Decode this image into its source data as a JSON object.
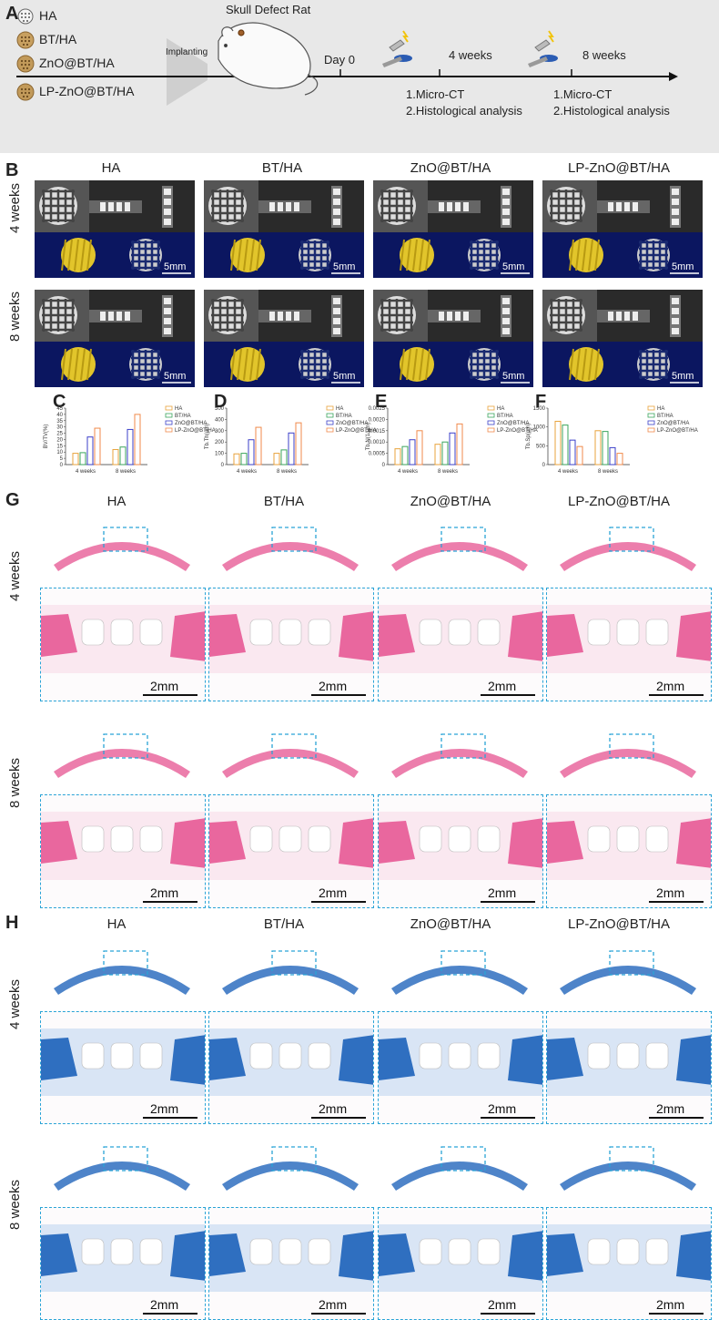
{
  "panels": {
    "A": "A",
    "B": "B",
    "C": "C",
    "D": "D",
    "E": "E",
    "F": "F",
    "G": "G",
    "H": "H"
  },
  "timeline": {
    "title": "Skull Defect Rat",
    "implanting": "Implanting",
    "day0": "Day 0",
    "w4": "4 weeks",
    "w8": "8 weeks",
    "step1": "1.Micro-CT",
    "step2": "2.Histological analysis",
    "groups": [
      "HA",
      "BT/HA",
      "ZnO@BT/HA",
      "LP-ZnO@BT/HA"
    ]
  },
  "groups": [
    "HA",
    "BT/HA",
    "ZnO@BT/HA",
    "LP-ZnO@BT/HA"
  ],
  "rows": {
    "w4": "4 weeks",
    "w8": "8 weeks"
  },
  "scale": {
    "ct": "5mm",
    "hist": "2mm"
  },
  "colors": {
    "HA": "#e8a33c",
    "BT/HA": "#3ba55d",
    "ZnO@BT/HA": "#3b3fc9",
    "LP-ZnO@BT/HA": "#f08a4b"
  },
  "chart_data": [
    {
      "type": "bar",
      "ylabel": "BV/TV(%)",
      "ylim": [
        0,
        45
      ],
      "yticks": [
        0,
        5,
        10,
        15,
        20,
        25,
        30,
        35,
        40,
        45
      ],
      "categories": [
        "4 weeks",
        "8 weeks"
      ],
      "series": [
        {
          "name": "HA",
          "values": [
            9,
            12
          ]
        },
        {
          "name": "BT/HA",
          "values": [
            9.5,
            14
          ]
        },
        {
          "name": "ZnO@BT/HA",
          "values": [
            22,
            28
          ]
        },
        {
          "name": "LP-ZnO@BT/HA",
          "values": [
            29,
            40
          ]
        }
      ],
      "legend": "top-right"
    },
    {
      "type": "bar",
      "ylabel": "Tb.Th(μm)",
      "ylim": [
        0,
        500
      ],
      "yticks": [
        0,
        100,
        200,
        300,
        400,
        500
      ],
      "categories": [
        "4 weeks",
        "8 weeks"
      ],
      "series": [
        {
          "name": "HA",
          "values": [
            95,
            100
          ]
        },
        {
          "name": "BT/HA",
          "values": [
            100,
            130
          ]
        },
        {
          "name": "ZnO@BT/HA",
          "values": [
            220,
            280
          ]
        },
        {
          "name": "LP-ZnO@BT/HA",
          "values": [
            330,
            370
          ]
        }
      ],
      "legend": "top-right"
    },
    {
      "type": "bar",
      "ylabel": "Tb.N(1/μm)",
      "ylim": [
        0,
        0.0025
      ],
      "yticks": [
        "0",
        "0.0005",
        "0.0010",
        "0.0015",
        "0.0020",
        "0.0025"
      ],
      "categories": [
        "4 weeks",
        "8 weeks"
      ],
      "series": [
        {
          "name": "HA",
          "values": [
            0.0007,
            0.0009
          ]
        },
        {
          "name": "BT/HA",
          "values": [
            0.0008,
            0.001
          ]
        },
        {
          "name": "ZnO@BT/HA",
          "values": [
            0.0011,
            0.0014
          ]
        },
        {
          "name": "LP-ZnO@BT/HA",
          "values": [
            0.0015,
            0.0018
          ]
        }
      ],
      "legend": "top-right"
    },
    {
      "type": "bar",
      "ylabel": "Tb.Sp(μm)",
      "ylim": [
        0,
        1500
      ],
      "yticks": [
        0,
        500,
        1000,
        1500
      ],
      "categories": [
        "4 weeks",
        "8 weeks"
      ],
      "series": [
        {
          "name": "HA",
          "values": [
            1150,
            900
          ]
        },
        {
          "name": "BT/HA",
          "values": [
            1050,
            880
          ]
        },
        {
          "name": "ZnO@BT/HA",
          "values": [
            650,
            450
          ]
        },
        {
          "name": "LP-ZnO@BT/HA",
          "values": [
            480,
            300
          ]
        }
      ],
      "legend": "top-right"
    }
  ]
}
